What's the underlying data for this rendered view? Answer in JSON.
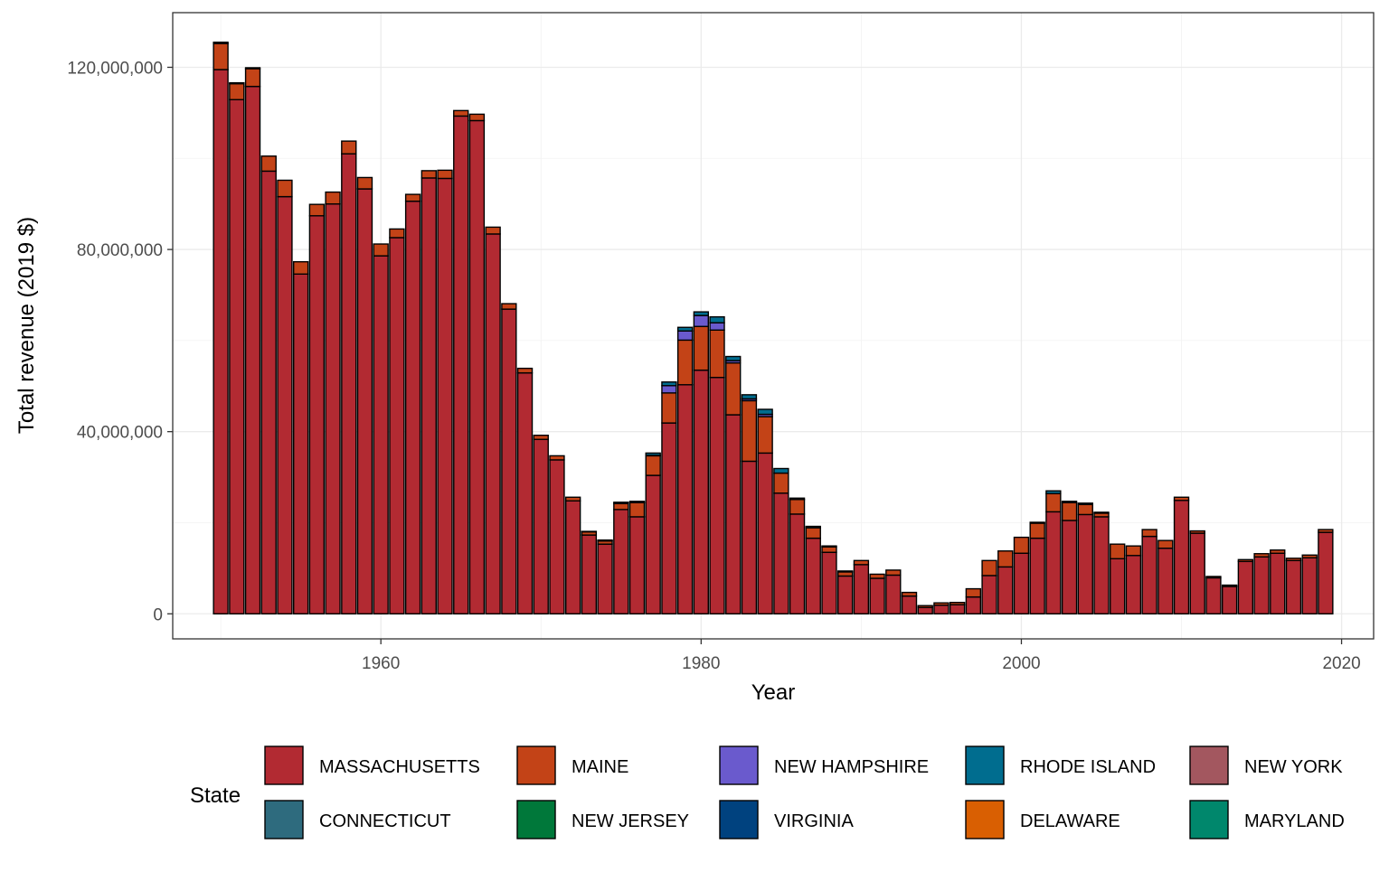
{
  "chart_data": {
    "type": "bar",
    "stacked": true,
    "xlabel": "Year",
    "ylabel": "Total revenue (2019 $)",
    "x_ticks": [
      1960,
      1980,
      2000,
      2020
    ],
    "y_ticks": [
      0,
      40000000,
      80000000,
      120000000
    ],
    "y_tick_labels": [
      "0",
      "40,000,000",
      "80,000,000",
      "120,000,000"
    ],
    "xlim": [
      1947,
      2022
    ],
    "ylim": [
      -5500000,
      132000000
    ],
    "grid": true,
    "legend": {
      "title": "State",
      "placement": "bottom"
    },
    "years": [
      1950,
      1951,
      1952,
      1953,
      1954,
      1955,
      1956,
      1957,
      1958,
      1959,
      1960,
      1961,
      1962,
      1963,
      1964,
      1965,
      1966,
      1967,
      1968,
      1969,
      1970,
      1971,
      1972,
      1973,
      1974,
      1975,
      1976,
      1977,
      1978,
      1979,
      1980,
      1981,
      1982,
      1983,
      1984,
      1985,
      1986,
      1987,
      1988,
      1989,
      1990,
      1991,
      1992,
      1993,
      1994,
      1995,
      1996,
      1997,
      1998,
      1999,
      2000,
      2001,
      2002,
      2003,
      2004,
      2005,
      2006,
      2007,
      2008,
      2009,
      2010,
      2011,
      2012,
      2013,
      2014,
      2015,
      2016,
      2017,
      2018,
      2019
    ],
    "series": [
      {
        "name": "MASSACHUSETTS",
        "color": "#B22A32",
        "values": [
          119500000,
          112900000,
          115800000,
          97200000,
          91600000,
          74600000,
          87400000,
          90000000,
          101000000,
          93300000,
          78600000,
          82600000,
          90600000,
          95700000,
          95600000,
          109300000,
          108300000,
          83400000,
          66900000,
          52900000,
          38300000,
          33800000,
          24800000,
          17300000,
          15300000,
          22900000,
          21300000,
          30400000,
          41900000,
          50300000,
          53500000,
          51900000,
          43700000,
          33500000,
          35300000,
          26500000,
          21900000,
          16600000,
          13500000,
          8300000,
          10800000,
          7800000,
          8500000,
          3900000,
          1400000,
          1900000,
          2000000,
          3700000,
          8400000,
          10300000,
          13300000,
          16600000,
          22400000,
          20500000,
          21800000,
          21300000,
          12100000,
          12800000,
          17000000,
          14400000,
          24900000,
          17700000,
          7900000,
          6000000,
          11500000,
          12500000,
          13300000,
          11700000,
          12300000,
          17900000
        ]
      },
      {
        "name": "MAINE",
        "color": "#C34317",
        "values": [
          5700000,
          3500000,
          3900000,
          3300000,
          3600000,
          2700000,
          2500000,
          2600000,
          2800000,
          2500000,
          2600000,
          1900000,
          1500000,
          1600000,
          1800000,
          1200000,
          1400000,
          1500000,
          1200000,
          1000000,
          900000,
          900000,
          800000,
          700000,
          700000,
          1300000,
          3100000,
          4300000,
          6600000,
          9800000,
          9600000,
          10400000,
          11400000,
          13300000,
          8000000,
          4400000,
          3200000,
          2300000,
          1200000,
          900000,
          900000,
          900000,
          1100000,
          800000,
          400000,
          500000,
          500000,
          1800000,
          3300000,
          3500000,
          3500000,
          3300000,
          4000000,
          3900000,
          2200000,
          800000,
          3200000,
          2100000,
          1500000,
          1700000,
          700000,
          500000,
          300000,
          300000,
          400000,
          700000,
          700000,
          500000,
          600000,
          600000
        ]
      },
      {
        "name": "NEW HAMPSHIRE",
        "color": "#6A5ACD",
        "values": [
          0,
          0,
          0,
          0,
          0,
          0,
          0,
          0,
          0,
          0,
          0,
          0,
          0,
          0,
          0,
          0,
          0,
          0,
          0,
          0,
          0,
          0,
          0,
          0,
          0,
          0,
          0,
          100000,
          1600000,
          2000000,
          2400000,
          1600000,
          500000,
          400000,
          500000,
          0,
          0,
          0,
          0,
          0,
          0,
          0,
          0,
          0,
          0,
          0,
          0,
          0,
          0,
          0,
          0,
          0,
          0,
          0,
          0,
          0,
          0,
          0,
          0,
          0,
          0,
          0,
          0,
          0,
          0,
          0,
          0,
          0,
          0,
          0
        ]
      },
      {
        "name": "RHODE ISLAND",
        "color": "#006D8F",
        "values": [
          0,
          0,
          0,
          0,
          0,
          0,
          0,
          0,
          0,
          0,
          0,
          0,
          0,
          0,
          0,
          0,
          0,
          0,
          0,
          0,
          0,
          0,
          0,
          100000,
          200000,
          300000,
          300000,
          500000,
          800000,
          800000,
          800000,
          1300000,
          900000,
          900000,
          1100000,
          1000000,
          300000,
          300000,
          200000,
          200000,
          0,
          0,
          0,
          0,
          0,
          0,
          0,
          0,
          0,
          0,
          0,
          200000,
          600000,
          300000,
          300000,
          200000,
          0,
          0,
          0,
          0,
          0,
          0,
          0,
          0,
          0,
          0,
          0,
          0,
          0,
          0
        ]
      },
      {
        "name": "NEW YORK",
        "color": "#A3575F",
        "values": [
          300000,
          200000,
          200000,
          0,
          0,
          0,
          0,
          0,
          0,
          0,
          0,
          0,
          0,
          0,
          0,
          0,
          0,
          0,
          0,
          0,
          0,
          0,
          0,
          0,
          0,
          0,
          0,
          0,
          0,
          0,
          0,
          0,
          0,
          0,
          0,
          0,
          0,
          0,
          0,
          0,
          0,
          0,
          0,
          0,
          0,
          0,
          0,
          0,
          0,
          0,
          0,
          0,
          0,
          0,
          0,
          0,
          0,
          0,
          0,
          0,
          0,
          0,
          0,
          0,
          0,
          0,
          0,
          0,
          0,
          0
        ]
      },
      {
        "name": "CONNECTICUT",
        "color": "#2E6B7E",
        "values": [
          0,
          0,
          0,
          0,
          0,
          0,
          0,
          0,
          0,
          0,
          0,
          0,
          0,
          0,
          0,
          0,
          0,
          0,
          0,
          0,
          0,
          0,
          0,
          0,
          0,
          0,
          0,
          0,
          0,
          0,
          0,
          0,
          0,
          0,
          0,
          0,
          0,
          0,
          0,
          0,
          0,
          0,
          0,
          0,
          0,
          0,
          0,
          0,
          0,
          0,
          0,
          0,
          0,
          0,
          0,
          0,
          0,
          0,
          0,
          0,
          0,
          0,
          0,
          0,
          0,
          0,
          0,
          0,
          0,
          0
        ]
      },
      {
        "name": "NEW JERSEY",
        "color": "#00783A",
        "values": [
          0,
          0,
          0,
          0,
          0,
          0,
          0,
          0,
          0,
          0,
          0,
          0,
          0,
          0,
          0,
          0,
          0,
          0,
          0,
          0,
          0,
          0,
          0,
          0,
          0,
          0,
          0,
          0,
          0,
          0,
          0,
          0,
          0,
          0,
          0,
          0,
          0,
          0,
          0,
          0,
          0,
          0,
          0,
          0,
          0,
          0,
          0,
          0,
          0,
          0,
          0,
          0,
          0,
          0,
          0,
          0,
          0,
          0,
          0,
          0,
          0,
          0,
          0,
          0,
          0,
          0,
          0,
          0,
          0,
          0
        ]
      },
      {
        "name": "VIRGINIA",
        "color": "#00427F",
        "values": [
          0,
          0,
          0,
          0,
          0,
          0,
          0,
          0,
          0,
          0,
          0,
          0,
          0,
          0,
          0,
          0,
          0,
          0,
          0,
          0,
          0,
          0,
          0,
          0,
          0,
          0,
          0,
          0,
          0,
          0,
          0,
          0,
          0,
          0,
          0,
          0,
          0,
          0,
          0,
          0,
          0,
          0,
          0,
          0,
          0,
          0,
          0,
          0,
          0,
          0,
          0,
          0,
          0,
          0,
          0,
          0,
          0,
          0,
          0,
          0,
          0,
          0,
          0,
          0,
          0,
          0,
          0,
          0,
          0,
          0
        ]
      },
      {
        "name": "DELAWARE",
        "color": "#D95F02",
        "values": [
          0,
          0,
          0,
          0,
          0,
          0,
          0,
          0,
          0,
          0,
          0,
          0,
          0,
          0,
          0,
          0,
          0,
          0,
          0,
          0,
          0,
          0,
          0,
          0,
          0,
          0,
          0,
          0,
          0,
          0,
          0,
          0,
          0,
          0,
          0,
          0,
          0,
          0,
          0,
          0,
          0,
          0,
          0,
          0,
          0,
          0,
          0,
          0,
          0,
          0,
          0,
          0,
          0,
          0,
          0,
          0,
          0,
          0,
          0,
          0,
          0,
          0,
          0,
          0,
          0,
          0,
          0,
          0,
          0,
          0
        ]
      },
      {
        "name": "MARYLAND",
        "color": "#00876C",
        "values": [
          0,
          0,
          0,
          0,
          0,
          0,
          0,
          0,
          0,
          0,
          0,
          0,
          0,
          0,
          0,
          0,
          0,
          0,
          0,
          0,
          0,
          0,
          0,
          0,
          0,
          0,
          0,
          0,
          0,
          0,
          0,
          0,
          0,
          0,
          0,
          0,
          0,
          0,
          0,
          0,
          0,
          0,
          0,
          0,
          0,
          0,
          0,
          0,
          0,
          0,
          0,
          0,
          0,
          0,
          0,
          0,
          0,
          0,
          0,
          0,
          0,
          0,
          0,
          0,
          0,
          0,
          0,
          0,
          0,
          0
        ]
      }
    ]
  }
}
